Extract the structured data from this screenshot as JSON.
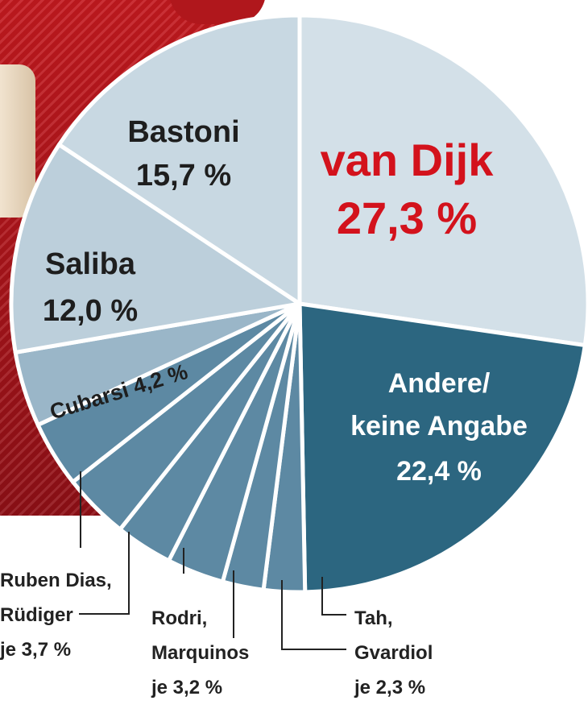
{
  "colors": {
    "pie_light_1": "#d3e0e8",
    "pie_light_2": "#c8d8e2",
    "pie_light_3": "#bccfdb",
    "pie_medium": "#9ab6c8",
    "pie_small": "#5d89a3",
    "pie_dark": "#2c6680",
    "highlight_red": "#d3121c",
    "text_dark": "#1e1e1e",
    "text_white": "#ffffff",
    "background_photo_red": "#b8161c"
  },
  "chart_data": {
    "type": "pie",
    "slices": [
      {
        "label": "van Dijk",
        "value": 27.3,
        "value_label": "27,3 %"
      },
      {
        "label": "Andere/ keine Angabe",
        "value": 22.4,
        "value_label": "22,4 %"
      },
      {
        "label": "Tah",
        "value": 2.3,
        "value_label": "je 2,3 %"
      },
      {
        "label": "Gvardiol",
        "value": 2.3,
        "value_label": "je 2,3 %"
      },
      {
        "label": "Rodri",
        "value": 3.2,
        "value_label": "je 3,2 %"
      },
      {
        "label": "Marquinos",
        "value": 3.2,
        "value_label": "je 3,2 %"
      },
      {
        "label": "Ruben Dias",
        "value": 3.7,
        "value_label": "je 3,7 %"
      },
      {
        "label": "Rüdiger",
        "value": 3.7,
        "value_label": "je 3,7 %"
      },
      {
        "label": "Cubarsi",
        "value": 4.2,
        "value_label": "4,2 %"
      },
      {
        "label": "Saliba",
        "value": 12.0,
        "value_label": "12,0 %"
      },
      {
        "label": "Bastoni",
        "value": 15.7,
        "value_label": "15,7 %"
      }
    ]
  },
  "labels": {
    "van_dijk": {
      "name": "van Dijk",
      "value": "27,3 %"
    },
    "bastoni": {
      "name": "Bastoni",
      "value": "15,7 %"
    },
    "saliba": {
      "name": "Saliba",
      "value": "12,0 %"
    },
    "cubarsi": {
      "text": "Cubarsi 4,2 %"
    },
    "andere": {
      "line1": "Andere/",
      "line2": "keine Angabe",
      "value": "22,4 %"
    },
    "dias_ruediger": {
      "line1": "Ruben Dias,",
      "line2": "Rüdiger",
      "line3": "je 3,7 %"
    },
    "rodri_marquinos": {
      "line1": "Rodri,",
      "line2": "Marquinos",
      "line3": "je 3,2 %"
    },
    "tah_gvardiol": {
      "line1": "Tah,",
      "line2": "Gvardiol",
      "line3": "je 2,3 %"
    }
  }
}
